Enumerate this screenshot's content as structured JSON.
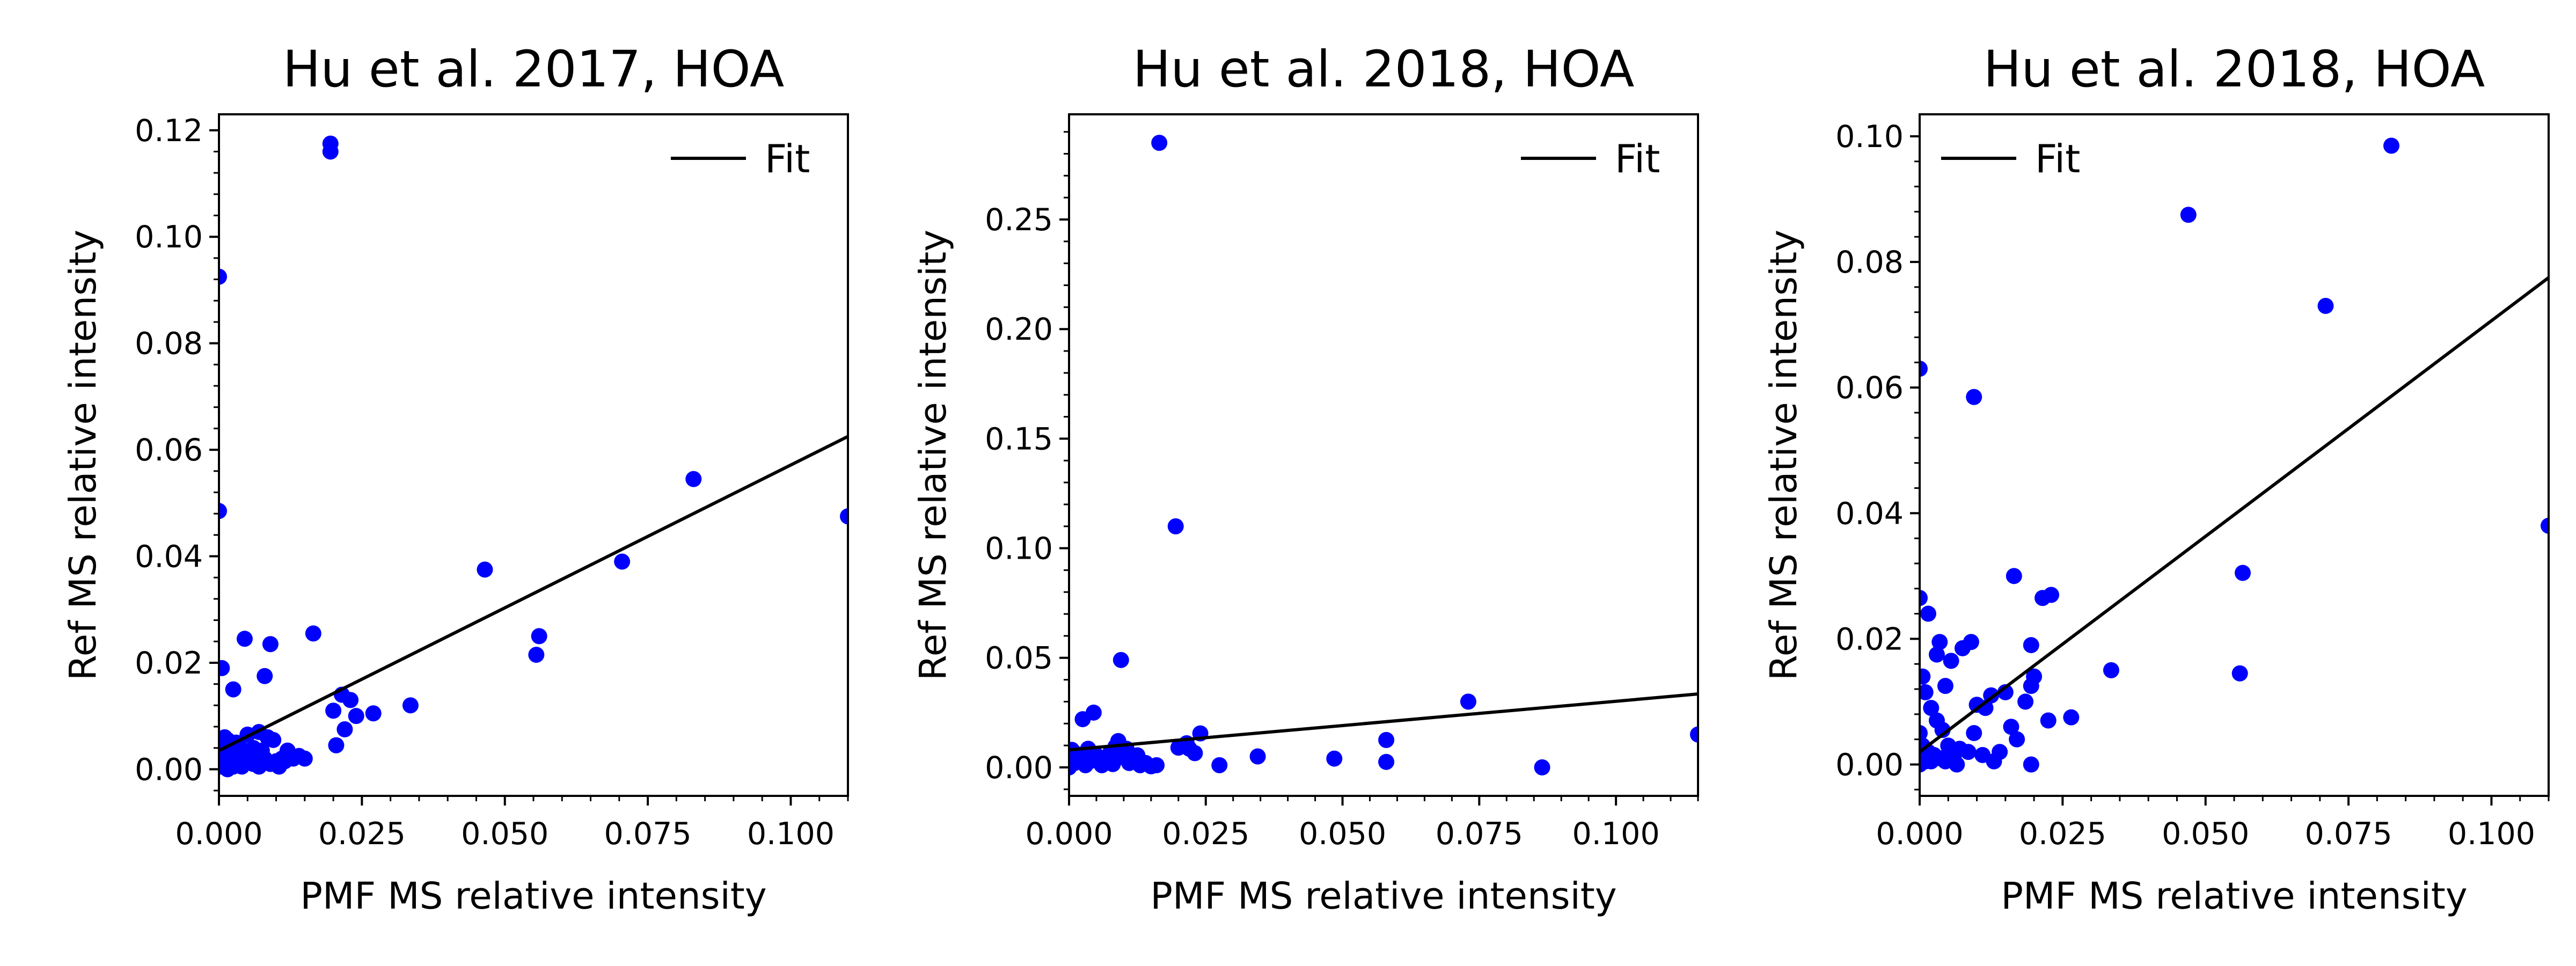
{
  "chart_data": [
    {
      "type": "scatter",
      "title": "Hu et al. 2017, HOA",
      "xlabel": "PMF MS relative intensity",
      "ylabel": "Ref MS relative intensity",
      "xlim": [
        0,
        0.11
      ],
      "ylim": [
        -0.005,
        0.123
      ],
      "xticks": [
        0.0,
        0.025,
        0.05,
        0.075,
        0.1
      ],
      "xtick_labels": [
        "0.000",
        "0.025",
        "0.050",
        "0.075",
        "0.100"
      ],
      "yticks": [
        0.0,
        0.02,
        0.04,
        0.06,
        0.08,
        0.1,
        0.12
      ],
      "ytick_labels": [
        "0.00",
        "0.02",
        "0.04",
        "0.06",
        "0.08",
        "0.10",
        "0.12"
      ],
      "grid": false,
      "legend": {
        "entries": [
          "Fit"
        ],
        "location": "upper right"
      },
      "series": [
        {
          "kind": "points",
          "color": "#0000ff",
          "points": [
            [
              0.0,
              0.0925
            ],
            [
              0.0,
              0.0485
            ],
            [
              0.0005,
              0.019
            ],
            [
              0.001,
              0.006
            ],
            [
              0.002,
              0.003
            ],
            [
              0.0025,
              0.015
            ],
            [
              0.003,
              0.005
            ],
            [
              0.004,
              0.0025
            ],
            [
              0.0045,
              0.0245
            ],
            [
              0.005,
              0.0065
            ],
            [
              0.006,
              0.004
            ],
            [
              0.007,
              0.007
            ],
            [
              0.008,
              0.0175
            ],
            [
              0.009,
              0.0235
            ],
            [
              0.0095,
              0.0055
            ],
            [
              0.01,
              0.0015
            ],
            [
              0.011,
              0.002
            ],
            [
              0.012,
              0.0035
            ],
            [
              0.013,
              0.002
            ],
            [
              0.014,
              0.0025
            ],
            [
              0.015,
              0.002
            ],
            [
              0.0165,
              0.0255
            ],
            [
              0.0195,
              0.1175
            ],
            [
              0.0195,
              0.116
            ],
            [
              0.02,
              0.011
            ],
            [
              0.0205,
              0.0045
            ],
            [
              0.0215,
              0.014
            ],
            [
              0.022,
              0.0075
            ],
            [
              0.023,
              0.013
            ],
            [
              0.024,
              0.01
            ],
            [
              0.027,
              0.0105
            ],
            [
              0.0335,
              0.012
            ],
            [
              0.0465,
              0.0375
            ],
            [
              0.0555,
              0.0215
            ],
            [
              0.056,
              0.025
            ],
            [
              0.0705,
              0.039
            ],
            [
              0.083,
              0.0545
            ],
            [
              0.11,
              0.0475
            ],
            [
              0.0005,
              0.0005
            ],
            [
              0.001,
              0.001
            ],
            [
              0.0015,
              0.0
            ],
            [
              0.002,
              0.001
            ],
            [
              0.0025,
              0.0005
            ],
            [
              0.003,
              0.001
            ],
            [
              0.0035,
              0.002
            ],
            [
              0.004,
              0.0005
            ],
            [
              0.005,
              0.0015
            ],
            [
              0.006,
              0.001
            ],
            [
              0.007,
              0.0005
            ],
            [
              0.008,
              0.002
            ],
            [
              0.009,
              0.001
            ],
            [
              0.0015,
              0.0055
            ],
            [
              0.0035,
              0.0045
            ],
            [
              0.0055,
              0.0025
            ],
            [
              0.0075,
              0.0035
            ],
            [
              0.0085,
              0.006
            ],
            [
              0.0105,
              0.0005
            ],
            [
              0.0115,
              0.0015
            ],
            [
              0.0,
              0.0035
            ],
            [
              0.0,
              0.002
            ]
          ]
        },
        {
          "name": "Fit",
          "kind": "line",
          "color": "#000000",
          "x": [
            0.0,
            0.11
          ],
          "y": [
            0.0035,
            0.0625
          ]
        }
      ]
    },
    {
      "type": "scatter",
      "title": "Hu et al. 2018, HOA",
      "xlabel": "PMF MS relative intensity",
      "ylabel": "Ref MS relative intensity",
      "xlim": [
        0,
        0.115
      ],
      "ylim": [
        -0.013,
        0.298
      ],
      "xticks": [
        0.0,
        0.025,
        0.05,
        0.075,
        0.1
      ],
      "xtick_labels": [
        "0.000",
        "0.025",
        "0.050",
        "0.075",
        "0.100"
      ],
      "yticks": [
        0.0,
        0.05,
        0.1,
        0.15,
        0.2,
        0.25
      ],
      "ytick_labels": [
        "0.00",
        "0.05",
        "0.10",
        "0.15",
        "0.20",
        "0.25"
      ],
      "grid": false,
      "legend": {
        "entries": [
          "Fit"
        ],
        "location": "upper right"
      },
      "series": [
        {
          "kind": "points",
          "color": "#0000ff",
          "points": [
            [
              0.0165,
              0.285
            ],
            [
              0.0195,
              0.11
            ],
            [
              0.0095,
              0.049
            ],
            [
              0.0025,
              0.022
            ],
            [
              0.0045,
              0.025
            ],
            [
              0.073,
              0.03
            ],
            [
              0.115,
              0.015
            ],
            [
              0.058,
              0.0125
            ],
            [
              0.024,
              0.0155
            ],
            [
              0.02,
              0.009
            ],
            [
              0.022,
              0.0085
            ],
            [
              0.023,
              0.0065
            ],
            [
              0.0345,
              0.005
            ],
            [
              0.0485,
              0.004
            ],
            [
              0.058,
              0.0025
            ],
            [
              0.0865,
              0.0
            ],
            [
              0.0275,
              0.001
            ],
            [
              0.0,
              0.0
            ],
            [
              0.001,
              0.002
            ],
            [
              0.002,
              0.0045
            ],
            [
              0.003,
              0.001
            ],
            [
              0.004,
              0.003
            ],
            [
              0.005,
              0.0055
            ],
            [
              0.006,
              0.001
            ],
            [
              0.007,
              0.003
            ],
            [
              0.008,
              0.0015
            ],
            [
              0.009,
              0.012
            ],
            [
              0.01,
              0.0045
            ],
            [
              0.011,
              0.002
            ],
            [
              0.012,
              0.0035
            ],
            [
              0.013,
              0.001
            ],
            [
              0.014,
              0.002
            ],
            [
              0.015,
              0.0005
            ],
            [
              0.0005,
              0.008
            ],
            [
              0.0015,
              0.006
            ],
            [
              0.0035,
              0.0085
            ],
            [
              0.0055,
              0.0025
            ],
            [
              0.0075,
              0.0065
            ],
            [
              0.0085,
              0.0095
            ],
            [
              0.0105,
              0.0085
            ],
            [
              0.0125,
              0.0055
            ],
            [
              0.016,
              0.001
            ],
            [
              0.0215,
              0.011
            ]
          ]
        },
        {
          "name": "Fit",
          "kind": "line",
          "color": "#000000",
          "x": [
            0.0,
            0.115
          ],
          "y": [
            0.008,
            0.0335
          ]
        }
      ]
    },
    {
      "type": "scatter",
      "title": "Hu et al. 2018, HOA",
      "xlabel": "PMF MS relative intensity",
      "ylabel": "Ref MS relative intensity",
      "xlim": [
        0,
        0.11
      ],
      "ylim": [
        -0.005,
        0.1035
      ],
      "xticks": [
        0.0,
        0.025,
        0.05,
        0.075,
        0.1
      ],
      "xtick_labels": [
        "0.000",
        "0.025",
        "0.050",
        "0.075",
        "0.100"
      ],
      "yticks": [
        0.0,
        0.02,
        0.04,
        0.06,
        0.08,
        0.1
      ],
      "ytick_labels": [
        "0.00",
        "0.02",
        "0.04",
        "0.06",
        "0.08",
        "0.10"
      ],
      "grid": false,
      "legend": {
        "entries": [
          "Fit"
        ],
        "location": "upper left"
      },
      "series": [
        {
          "kind": "points",
          "color": "#0000ff",
          "points": [
            [
              0.0,
              0.063
            ],
            [
              0.0825,
              0.0985
            ],
            [
              0.047,
              0.0875
            ],
            [
              0.071,
              0.073
            ],
            [
              0.0095,
              0.0585
            ],
            [
              0.0,
              0.0265
            ],
            [
              0.0015,
              0.024
            ],
            [
              0.0165,
              0.03
            ],
            [
              0.0215,
              0.0265
            ],
            [
              0.023,
              0.027
            ],
            [
              0.0565,
              0.0305
            ],
            [
              0.11,
              0.038
            ],
            [
              0.0335,
              0.015
            ],
            [
              0.056,
              0.0145
            ],
            [
              0.0195,
              0.019
            ],
            [
              0.0195,
              0.0125
            ],
            [
              0.02,
              0.014
            ],
            [
              0.0185,
              0.01
            ],
            [
              0.016,
              0.006
            ],
            [
              0.017,
              0.004
            ],
            [
              0.015,
              0.0115
            ],
            [
              0.0125,
              0.011
            ],
            [
              0.0115,
              0.009
            ],
            [
              0.01,
              0.0095
            ],
            [
              0.0095,
              0.005
            ],
            [
              0.011,
              0.0015
            ],
            [
              0.014,
              0.002
            ],
            [
              0.0195,
              0.0
            ],
            [
              0.0265,
              0.0075
            ],
            [
              0.0225,
              0.007
            ],
            [
              0.013,
              0.0005
            ],
            [
              0.0085,
              0.002
            ],
            [
              0.0065,
              0.0
            ],
            [
              0.0055,
              0.0165
            ],
            [
              0.0075,
              0.0185
            ],
            [
              0.009,
              0.0195
            ],
            [
              0.0035,
              0.0195
            ],
            [
              0.003,
              0.0175
            ],
            [
              0.0045,
              0.0125
            ],
            [
              0.0005,
              0.014
            ],
            [
              0.001,
              0.0115
            ],
            [
              0.002,
              0.009
            ],
            [
              0.003,
              0.007
            ],
            [
              0.004,
              0.0055
            ],
            [
              0.005,
              0.003
            ],
            [
              0.006,
              0.0015
            ],
            [
              0.0,
              0.005
            ],
            [
              0.0005,
              0.003
            ],
            [
              0.001,
              0.0005
            ],
            [
              0.0015,
              0.002
            ],
            [
              0.002,
              0.0005
            ],
            [
              0.0025,
              0.0015
            ],
            [
              0.0035,
              0.001
            ],
            [
              0.0045,
              0.0005
            ],
            [
              0.007,
              0.0025
            ],
            [
              0.0,
              0.0
            ]
          ]
        },
        {
          "name": "Fit",
          "kind": "line",
          "color": "#000000",
          "x": [
            0.0,
            0.11
          ],
          "y": [
            0.002,
            0.0775
          ]
        }
      ]
    }
  ]
}
